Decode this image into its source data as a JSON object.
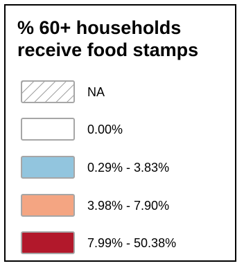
{
  "legend": {
    "title_line1": "% 60+ households",
    "title_line2": "receive food stamps",
    "items": [
      {
        "label": "NA",
        "fill": "hatched",
        "color": "#ffffff",
        "hatch_color": "#9a9a9a"
      },
      {
        "label": "0.00%",
        "fill": "solid",
        "color": "#ffffff"
      },
      {
        "label": "0.29% - 3.83%",
        "fill": "solid",
        "color": "#92c5de"
      },
      {
        "label": "3.98% - 7.90%",
        "fill": "solid",
        "color": "#f4a582"
      },
      {
        "label": "7.99% - 50.38%",
        "fill": "solid",
        "color": "#b2182b"
      }
    ],
    "border_color": "#000000",
    "swatch_border_color": "#a6a6a6"
  }
}
